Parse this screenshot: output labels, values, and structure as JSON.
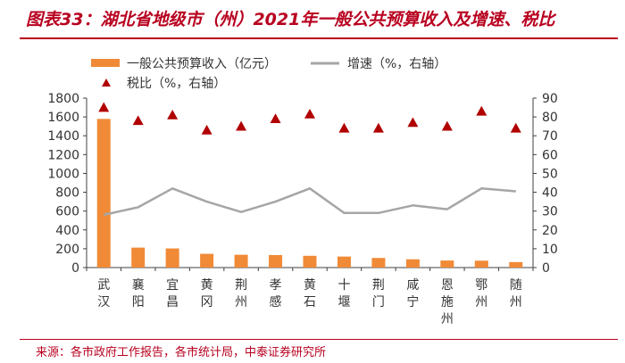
{
  "title": "图表33：湖北省地级市（州）2021年一般公共预算收入及增速、税比",
  "source": "来源：各市政府工作报告，各市统计局，中泰证券研究所",
  "colors": {
    "bar": "#f08a37",
    "line": "#a6a6a6",
    "marker": "#b10000",
    "accent": "#b8001f"
  },
  "chart_data": {
    "type": "bar",
    "categories": [
      "武汉",
      "襄阳",
      "宜昌",
      "黄冈",
      "荆州",
      "孝感",
      "黄石",
      "十堰",
      "荆门",
      "咸宁",
      "恩施州",
      "鄂州",
      "随州"
    ],
    "left_axis": {
      "min": 0,
      "max": 1800,
      "step": 200
    },
    "right_axis": {
      "min": 0,
      "max": 90,
      "step": 10
    },
    "grid": false,
    "legend_position": "top",
    "series": [
      {
        "name": "一般公共预算收入（亿元）",
        "type": "bar",
        "axis": "left",
        "values": [
          1579,
          212,
          203,
          146,
          136,
          133,
          125,
          117,
          102,
          88,
          75,
          73,
          58
        ]
      },
      {
        "name": "增速（%，右轴）",
        "type": "line",
        "axis": "right",
        "values": [
          28,
          32,
          42,
          35,
          29.5,
          35,
          42,
          29,
          29,
          33,
          31,
          42,
          40.5
        ]
      },
      {
        "name": "税比（%，右轴）",
        "type": "scatter",
        "marker": "triangle",
        "axis": "right",
        "values": [
          85,
          78,
          81,
          73,
          75,
          79,
          81.5,
          74,
          74,
          77,
          75,
          83,
          74
        ]
      }
    ]
  }
}
